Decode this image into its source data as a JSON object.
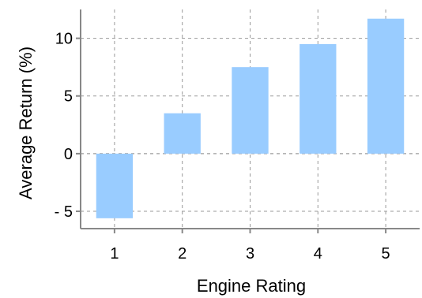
{
  "chart_data": {
    "type": "bar",
    "categories": [
      "1",
      "2",
      "3",
      "4",
      "5"
    ],
    "values": [
      -5.6,
      3.5,
      7.5,
      9.5,
      11.7
    ],
    "xlabel": "Engine Rating",
    "ylabel": "Average Return (%)",
    "ylim": [
      -6.5,
      12.5
    ],
    "yticks": [
      -5,
      0,
      5,
      10
    ],
    "ytick_labels": [
      "- 5",
      "0",
      "5",
      "10"
    ],
    "grid": true,
    "bar_color": "#99ccff"
  }
}
